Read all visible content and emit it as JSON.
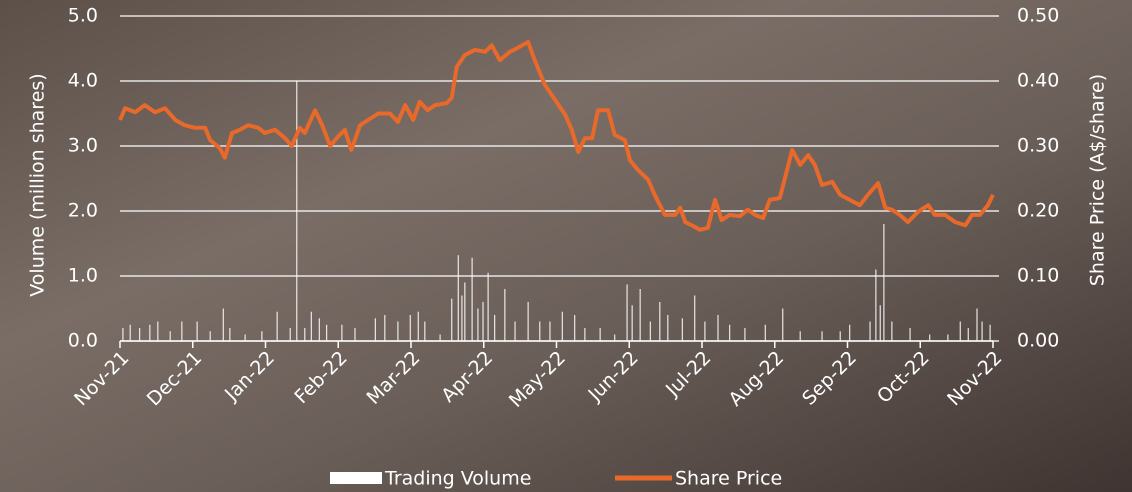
{
  "chart_data": {
    "type": "bar-line",
    "y_label": "Volume (million shares)",
    "y2_label": "Share Price (A$/share)",
    "xlim": [
      0,
      12
    ],
    "xticks": [
      {
        "value": 0,
        "label": "Nov-21"
      },
      {
        "value": 1,
        "label": "Dec-21"
      },
      {
        "value": 2,
        "label": "Jan-22"
      },
      {
        "value": 3,
        "label": "Feb-22"
      },
      {
        "value": 4,
        "label": "Mar-22"
      },
      {
        "value": 5,
        "label": "Apr-22"
      },
      {
        "value": 6,
        "label": "May-22"
      },
      {
        "value": 7,
        "label": "Jun-22"
      },
      {
        "value": 8,
        "label": "Jul-22"
      },
      {
        "value": 9,
        "label": "Aug-22"
      },
      {
        "value": 10,
        "label": "Sep-22"
      },
      {
        "value": 11,
        "label": "Oct-22"
      },
      {
        "value": 12,
        "label": "Nov-22"
      }
    ],
    "ylim": [
      0,
      5
    ],
    "yticks": [
      {
        "value": 0,
        "label": "0.0"
      },
      {
        "value": 1,
        "label": "1.0"
      },
      {
        "value": 2,
        "label": "2.0"
      },
      {
        "value": 3,
        "label": "3.0"
      },
      {
        "value": 4,
        "label": "4.0"
      },
      {
        "value": 5,
        "label": "5.0"
      }
    ],
    "y2lim": [
      0,
      0.5
    ],
    "y2ticks": [
      {
        "value": 0,
        "label": "0.00"
      },
      {
        "value": 0.1,
        "label": "0.10"
      },
      {
        "value": 0.2,
        "label": "0.20"
      },
      {
        "value": 0.3,
        "label": "0.30"
      },
      {
        "value": 0.4,
        "label": "0.40"
      },
      {
        "value": 0.5,
        "label": "0.50"
      }
    ],
    "grid": true,
    "legend": "bottom",
    "series": [
      {
        "name": "Trading Volume",
        "type": "bar",
        "color": "#ffffff",
        "x": [
          0.04,
          0.14,
          0.27,
          0.41,
          0.52,
          0.69,
          0.85,
          1.06,
          1.24,
          1.42,
          1.51,
          1.72,
          1.95,
          2.16,
          2.34,
          2.43,
          2.54,
          2.63,
          2.74,
          2.84,
          3.05,
          3.23,
          3.51,
          3.64,
          3.82,
          3.99,
          4.1,
          4.19,
          4.4,
          4.56,
          4.65,
          4.7,
          4.74,
          4.84,
          4.92,
          4.99,
          5.06,
          5.15,
          5.29,
          5.43,
          5.61,
          5.77,
          5.91,
          6.08,
          6.25,
          6.39,
          6.6,
          6.8,
          6.97,
          7.04,
          7.15,
          7.29,
          7.42,
          7.53,
          7.73,
          7.9,
          8.04,
          8.22,
          8.38,
          8.59,
          8.87,
          9.11,
          9.35,
          9.65,
          9.9,
          10.03,
          10.31,
          10.39,
          10.45,
          10.5,
          10.61,
          10.86,
          11.13,
          11.38,
          11.55,
          11.66,
          11.78,
          11.85,
          11.96
        ],
        "values": [
          0.2,
          0.25,
          0.2,
          0.25,
          0.3,
          0.15,
          0.3,
          0.3,
          0.15,
          0.5,
          0.2,
          0.1,
          0.15,
          0.45,
          0.2,
          4.0,
          0.2,
          0.45,
          0.35,
          0.25,
          0.25,
          0.2,
          0.35,
          0.4,
          0.3,
          0.4,
          0.45,
          0.3,
          0.1,
          0.65,
          1.32,
          0.7,
          0.9,
          1.28,
          0.5,
          0.6,
          1.05,
          0.4,
          0.8,
          0.3,
          0.6,
          0.3,
          0.3,
          0.45,
          0.4,
          0.2,
          0.2,
          0.1,
          0.87,
          0.55,
          0.8,
          0.3,
          0.6,
          0.4,
          0.35,
          0.7,
          0.3,
          0.4,
          0.25,
          0.2,
          0.25,
          0.5,
          0.15,
          0.15,
          0.15,
          0.25,
          0.3,
          1.1,
          0.55,
          1.8,
          0.3,
          0.2,
          0.1,
          0.1,
          0.3,
          0.2,
          0.5,
          0.3,
          0.25
        ]
      },
      {
        "name": "Share Price",
        "type": "line",
        "axis": "y2",
        "color": "#e8692a",
        "x": [
          0,
          0.07,
          0.21,
          0.34,
          0.48,
          0.62,
          0.76,
          0.89,
          1.03,
          1.17,
          1.24,
          1.37,
          1.44,
          1.54,
          1.65,
          1.76,
          1.9,
          1.99,
          2.13,
          2.27,
          2.36,
          2.47,
          2.54,
          2.68,
          2.78,
          2.89,
          3.0,
          3.09,
          3.18,
          3.3,
          3.41,
          3.55,
          3.71,
          3.82,
          3.92,
          4.03,
          4.12,
          4.23,
          4.33,
          4.49,
          4.56,
          4.63,
          4.74,
          4.88,
          5.02,
          5.11,
          5.22,
          5.36,
          5.47,
          5.61,
          5.7,
          5.84,
          5.98,
          6.12,
          6.21,
          6.3,
          6.39,
          6.49,
          6.57,
          6.71,
          6.8,
          6.94,
          7.01,
          7.12,
          7.26,
          7.35,
          7.49,
          7.63,
          7.7,
          7.77,
          7.86,
          7.97,
          8.08,
          8.18,
          8.27,
          8.38,
          8.52,
          8.63,
          8.73,
          8.84,
          8.93,
          9.07,
          9.15,
          9.24,
          9.35,
          9.46,
          9.55,
          9.65,
          9.79,
          9.9,
          10.03,
          10.17,
          10.28,
          10.42,
          10.52,
          10.61,
          10.72,
          10.83,
          10.97,
          11.11,
          11.2,
          11.34,
          11.48,
          11.62,
          11.71,
          11.82,
          11.93,
          12.0
        ],
        "values": [
          0.34,
          0.358,
          0.352,
          0.363,
          0.352,
          0.358,
          0.34,
          0.332,
          0.328,
          0.328,
          0.309,
          0.297,
          0.282,
          0.32,
          0.325,
          0.332,
          0.328,
          0.32,
          0.325,
          0.312,
          0.3,
          0.328,
          0.32,
          0.355,
          0.332,
          0.3,
          0.315,
          0.325,
          0.294,
          0.332,
          0.34,
          0.35,
          0.35,
          0.337,
          0.363,
          0.34,
          0.368,
          0.355,
          0.363,
          0.366,
          0.374,
          0.422,
          0.44,
          0.448,
          0.445,
          0.455,
          0.432,
          0.445,
          0.451,
          0.46,
          0.432,
          0.394,
          0.371,
          0.348,
          0.325,
          0.291,
          0.312,
          0.312,
          0.355,
          0.355,
          0.317,
          0.309,
          0.278,
          0.263,
          0.248,
          0.225,
          0.194,
          0.194,
          0.205,
          0.183,
          0.178,
          0.171,
          0.174,
          0.217,
          0.186,
          0.194,
          0.192,
          0.202,
          0.194,
          0.189,
          0.217,
          0.22,
          0.255,
          0.294,
          0.271,
          0.286,
          0.271,
          0.24,
          0.245,
          0.225,
          0.217,
          0.209,
          0.225,
          0.243,
          0.205,
          0.202,
          0.194,
          0.183,
          0.199,
          0.209,
          0.194,
          0.194,
          0.183,
          0.178,
          0.194,
          0.194,
          0.209,
          0.225
        ]
      }
    ]
  }
}
